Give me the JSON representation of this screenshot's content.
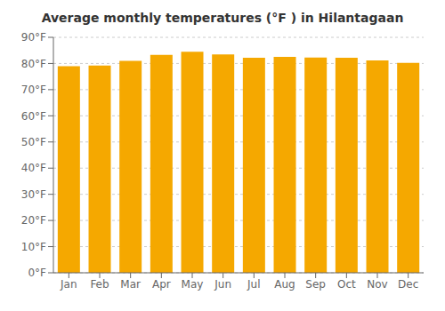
{
  "chart_data": {
    "type": "bar",
    "title": "Average monthly temperatures (°F ) in Hilantagaan",
    "categories": [
      "Jan",
      "Feb",
      "Mar",
      "Apr",
      "May",
      "Jun",
      "Jul",
      "Aug",
      "Sep",
      "Oct",
      "Nov",
      "Dec"
    ],
    "values": [
      79.0,
      79.2,
      81.0,
      83.3,
      84.5,
      83.5,
      82.2,
      82.5,
      82.3,
      82.2,
      81.2,
      80.2
    ],
    "color": "#F5A800",
    "ylim": [
      0,
      90
    ],
    "yticks": [
      {
        "value": 0,
        "label": "0°F"
      },
      {
        "value": 10,
        "label": "10°F"
      },
      {
        "value": 20,
        "label": "20°F"
      },
      {
        "value": 30,
        "label": "30°F"
      },
      {
        "value": 40,
        "label": "40°F"
      },
      {
        "value": 50,
        "label": "50°F"
      },
      {
        "value": 60,
        "label": "60°F"
      },
      {
        "value": 70,
        "label": "70°F"
      },
      {
        "value": 80,
        "label": "80°F"
      },
      {
        "value": 90,
        "label": "90°F"
      }
    ],
    "grid": true
  }
}
